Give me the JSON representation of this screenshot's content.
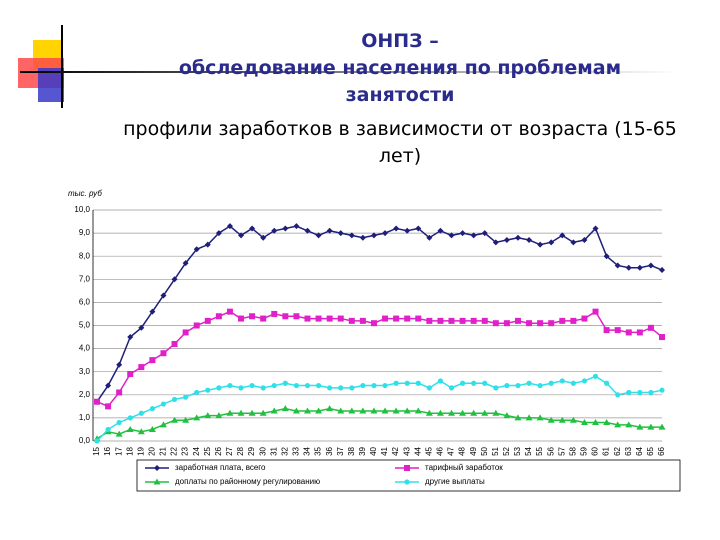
{
  "chart_data": {
    "type": "line",
    "title": [
      "ОНПЗ –",
      "обследование населения по проблемам занятости"
    ],
    "subtitle": "профили заработков в зависимости от возраста (15-65 лет)",
    "y_label": "тыс. руб",
    "categories": [
      "15",
      "16",
      "17",
      "18",
      "19",
      "20",
      "21",
      "22",
      "23",
      "24",
      "25",
      "26",
      "27",
      "28",
      "29",
      "30",
      "31",
      "32",
      "33",
      "34",
      "35",
      "36",
      "37",
      "38",
      "39",
      "40",
      "41",
      "42",
      "43",
      "44",
      "45",
      "46",
      "47",
      "48",
      "49",
      "50",
      "51",
      "52",
      "53",
      "54",
      "55",
      "56",
      "57",
      "58",
      "59",
      "60",
      "61",
      "62",
      "63",
      "64",
      "65",
      "66"
    ],
    "ylim": [
      0,
      10
    ],
    "yticks": [
      {
        "value": 0,
        "label": "0,0"
      },
      {
        "value": 1,
        "label": "1,0"
      },
      {
        "value": 2,
        "label": "2,0"
      },
      {
        "value": 3,
        "label": "3,0"
      },
      {
        "value": 4,
        "label": "4,0"
      },
      {
        "value": 5,
        "label": "5,0"
      },
      {
        "value": 6,
        "label": "6,0"
      },
      {
        "value": 7,
        "label": "7,0"
      },
      {
        "value": 8,
        "label": "8,0"
      },
      {
        "value": 9,
        "label": "9,0"
      },
      {
        "value": 10,
        "label": "10,0"
      }
    ],
    "grid": true,
    "series": [
      {
        "name": "заработная плата, всего",
        "color": "#1f1f7a",
        "marker": "diamond",
        "values": [
          1.7,
          2.4,
          3.3,
          4.5,
          4.9,
          5.6,
          6.3,
          7.0,
          7.7,
          8.3,
          8.5,
          9.0,
          9.3,
          8.9,
          9.2,
          8.8,
          9.1,
          9.2,
          9.3,
          9.1,
          8.9,
          9.1,
          9.0,
          8.9,
          8.8,
          8.9,
          9.0,
          9.2,
          9.1,
          9.2,
          8.8,
          9.1,
          8.9,
          9.0,
          8.9,
          9.0,
          8.6,
          8.7,
          8.8,
          8.7,
          8.5,
          8.6,
          8.9,
          8.6,
          8.7,
          9.2,
          8.0,
          7.6,
          7.5,
          7.5,
          7.6,
          7.4
        ]
      },
      {
        "name": "тарифный заработок",
        "color": "#e020c8",
        "marker": "square",
        "values": [
          1.7,
          1.5,
          2.1,
          2.9,
          3.2,
          3.5,
          3.8,
          4.2,
          4.7,
          5.0,
          5.2,
          5.4,
          5.6,
          5.3,
          5.4,
          5.3,
          5.5,
          5.4,
          5.4,
          5.3,
          5.3,
          5.3,
          5.3,
          5.2,
          5.2,
          5.1,
          5.3,
          5.3,
          5.3,
          5.3,
          5.2,
          5.2,
          5.2,
          5.2,
          5.2,
          5.2,
          5.1,
          5.1,
          5.2,
          5.1,
          5.1,
          5.1,
          5.2,
          5.2,
          5.3,
          5.6,
          4.8,
          4.8,
          4.7,
          4.7,
          4.9,
          4.5
        ]
      },
      {
        "name": "доплаты по районному регулированию",
        "color": "#22c040",
        "marker": "triangle",
        "values": [
          0.1,
          0.4,
          0.3,
          0.5,
          0.4,
          0.5,
          0.7,
          0.9,
          0.9,
          1.0,
          1.1,
          1.1,
          1.2,
          1.2,
          1.2,
          1.2,
          1.3,
          1.4,
          1.3,
          1.3,
          1.3,
          1.4,
          1.3,
          1.3,
          1.3,
          1.3,
          1.3,
          1.3,
          1.3,
          1.3,
          1.2,
          1.2,
          1.2,
          1.2,
          1.2,
          1.2,
          1.2,
          1.1,
          1.0,
          1.0,
          1.0,
          0.9,
          0.9,
          0.9,
          0.8,
          0.8,
          0.8,
          0.7,
          0.7,
          0.6,
          0.6,
          0.6
        ]
      },
      {
        "name": "другие выплаты",
        "color": "#30e0e8",
        "marker": "circle",
        "values": [
          0.0,
          0.5,
          0.8,
          1.0,
          1.2,
          1.4,
          1.6,
          1.8,
          1.9,
          2.1,
          2.2,
          2.3,
          2.4,
          2.3,
          2.4,
          2.3,
          2.4,
          2.5,
          2.4,
          2.4,
          2.4,
          2.3,
          2.3,
          2.3,
          2.4,
          2.4,
          2.4,
          2.5,
          2.5,
          2.5,
          2.3,
          2.6,
          2.3,
          2.5,
          2.5,
          2.5,
          2.3,
          2.4,
          2.4,
          2.5,
          2.4,
          2.5,
          2.6,
          2.5,
          2.6,
          2.8,
          2.5,
          2.0,
          2.1,
          2.1,
          2.1,
          2.2
        ]
      }
    ]
  }
}
